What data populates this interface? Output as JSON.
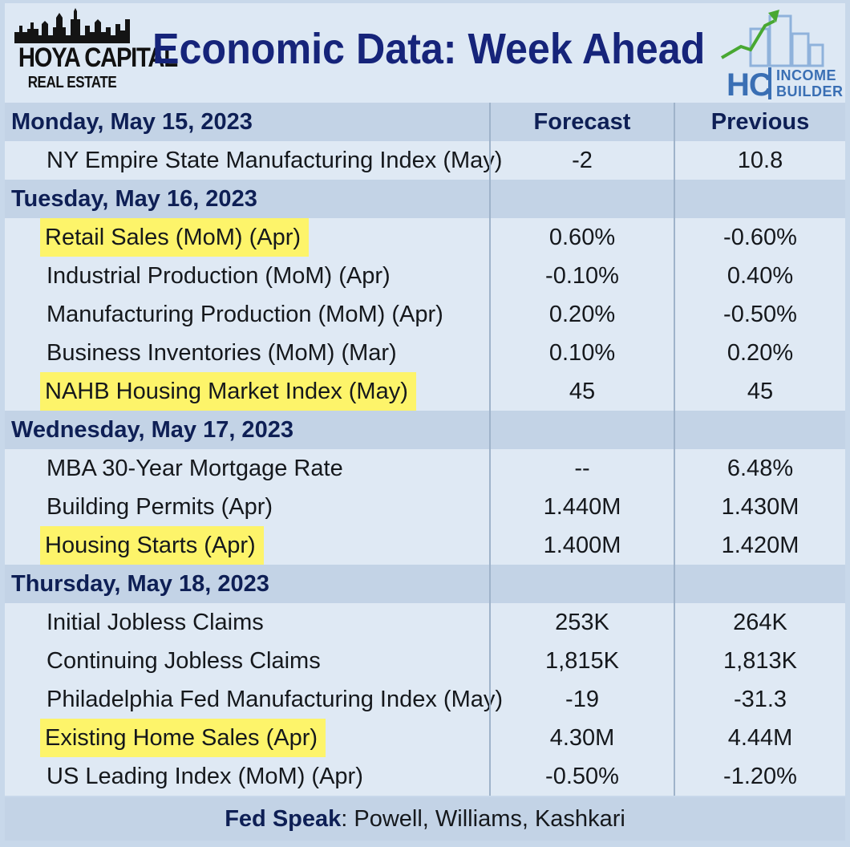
{
  "header": {
    "logo_left_name": "HOYA CAPITAL",
    "logo_left_sub": "REAL ESTATE",
    "title": "Economic Data: Week Ahead",
    "logo_right_letters": "HC",
    "logo_right_word1": "INCOME",
    "logo_right_word2": "BUILDER"
  },
  "columns": {
    "forecast": "Forecast",
    "previous": "Previous"
  },
  "days": [
    {
      "label": "Monday, May 15, 2023",
      "items": [
        {
          "name": "NY Empire State Manufacturing Index (May)",
          "forecast": "-2",
          "previous": "10.8",
          "highlight": false
        }
      ]
    },
    {
      "label": "Tuesday, May 16, 2023",
      "items": [
        {
          "name": "Retail Sales (MoM) (Apr)",
          "forecast": "0.60%",
          "previous": "-0.60%",
          "highlight": true
        },
        {
          "name": "Industrial Production (MoM) (Apr)",
          "forecast": "-0.10%",
          "previous": "0.40%",
          "highlight": false
        },
        {
          "name": "Manufacturing Production (MoM) (Apr)",
          "forecast": "0.20%",
          "previous": "-0.50%",
          "highlight": false
        },
        {
          "name": "Business Inventories (MoM) (Mar)",
          "forecast": "0.10%",
          "previous": "0.20%",
          "highlight": false
        },
        {
          "name": "NAHB Housing Market Index (May)",
          "forecast": "45",
          "previous": "45",
          "highlight": true
        }
      ]
    },
    {
      "label": "Wednesday, May 17, 2023",
      "items": [
        {
          "name": "MBA 30-Year Mortgage Rate",
          "forecast": "--",
          "previous": "6.48%",
          "highlight": false
        },
        {
          "name": "Building Permits (Apr)",
          "forecast": "1.440M",
          "previous": "1.430M",
          "highlight": false
        },
        {
          "name": "Housing Starts (Apr)",
          "forecast": "1.400M",
          "previous": "1.420M",
          "highlight": true
        }
      ]
    },
    {
      "label": "Thursday, May 18, 2023",
      "items": [
        {
          "name": "Initial Jobless Claims",
          "forecast": "253K",
          "previous": "264K",
          "highlight": false
        },
        {
          "name": "Continuing Jobless Claims",
          "forecast": "1,815K",
          "previous": "1,813K",
          "highlight": false
        },
        {
          "name": "Philadelphia Fed Manufacturing Index (May)",
          "forecast": "-19",
          "previous": "-31.3",
          "highlight": false
        },
        {
          "name": "Existing Home Sales (Apr)",
          "forecast": "4.30M",
          "previous": "4.44M",
          "highlight": true
        },
        {
          "name": "US Leading Index (MoM) (Apr)",
          "forecast": "-0.50%",
          "previous": "-1.20%",
          "highlight": false
        }
      ]
    }
  ],
  "footer": {
    "label": "Fed Speak",
    "text": ": Powell, Williams, Kashkari"
  },
  "colors": {
    "title": "#16247a",
    "highlight": "#fdf46a",
    "day_row": "#c3d3e6",
    "body": "#dfe9f4"
  }
}
